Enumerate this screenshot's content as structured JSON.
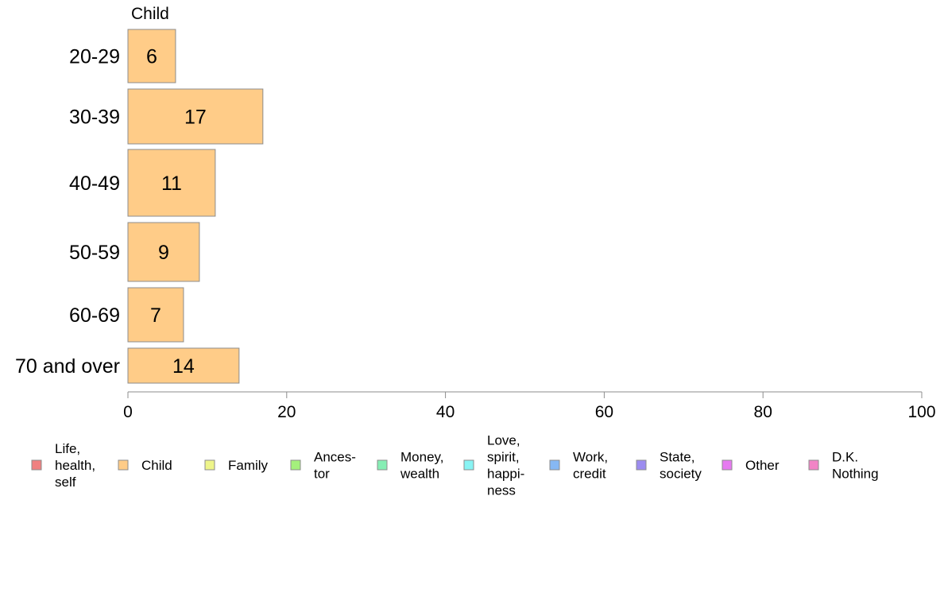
{
  "chart_data": {
    "type": "bar",
    "orientation": "horizontal",
    "stacked": true,
    "title": "",
    "xlabel": "",
    "ylabel": "",
    "xlim": [
      0,
      100
    ],
    "x_ticks": [
      0,
      20,
      40,
      60,
      80,
      100
    ],
    "grid": false,
    "legend_position": "bottom",
    "categories": [
      "20-29",
      "30-39",
      "40-49",
      "50-59",
      "60-69",
      "70 and over"
    ],
    "series": [
      {
        "name": "Child",
        "color": "#FFCC88",
        "values": [
          6,
          17,
          11,
          9,
          7,
          14
        ]
      }
    ],
    "annotations": [
      {
        "text": "Child"
      }
    ],
    "legend": [
      {
        "lines": [
          "Life,",
          "health,",
          "self"
        ],
        "color": "#F08080"
      },
      {
        "lines": [
          "Child"
        ],
        "color": "#FFCC88"
      },
      {
        "lines": [
          "Family"
        ],
        "color": "#EEF58A"
      },
      {
        "lines": [
          "Ances-",
          "tor"
        ],
        "color": "#A4F07C"
      },
      {
        "lines": [
          "Money,",
          "wealth"
        ],
        "color": "#86EEB4"
      },
      {
        "lines": [
          "Love,",
          "spirit,",
          "happi-",
          "ness"
        ],
        "color": "#88F4F4"
      },
      {
        "lines": [
          "Work,",
          "credit"
        ],
        "color": "#86B8F4"
      },
      {
        "lines": [
          "State,",
          "society"
        ],
        "color": "#9C8CF0"
      },
      {
        "lines": [
          "Other"
        ],
        "color": "#E67AF0"
      },
      {
        "lines": [
          "D.K.",
          "Nothing"
        ],
        "color": "#F284C6"
      }
    ]
  }
}
